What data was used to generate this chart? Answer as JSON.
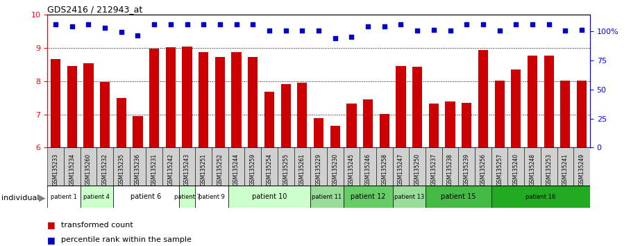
{
  "title": "GDS2416 / 212943_at",
  "samples": [
    "GSM135233",
    "GSM135234",
    "GSM135260",
    "GSM135232",
    "GSM135235",
    "GSM135236",
    "GSM135231",
    "GSM135242",
    "GSM135243",
    "GSM135251",
    "GSM135252",
    "GSM135244",
    "GSM135259",
    "GSM135254",
    "GSM135255",
    "GSM135261",
    "GSM135229",
    "GSM135230",
    "GSM135245",
    "GSM135246",
    "GSM135258",
    "GSM135247",
    "GSM135250",
    "GSM135237",
    "GSM135238",
    "GSM135239",
    "GSM135256",
    "GSM135257",
    "GSM135240",
    "GSM135248",
    "GSM135253",
    "GSM135241",
    "GSM135249"
  ],
  "bar_values": [
    8.67,
    8.45,
    8.55,
    7.98,
    7.5,
    6.95,
    8.97,
    9.03,
    9.05,
    8.88,
    8.72,
    8.88,
    8.72,
    7.68,
    7.92,
    7.95,
    6.88,
    6.65,
    7.32,
    7.45,
    7.02,
    8.45,
    8.43,
    7.32,
    7.38,
    7.35,
    8.93,
    8.02,
    8.35,
    8.78,
    8.77,
    8.02,
    8.02
  ],
  "dot_values": [
    9.72,
    9.65,
    9.72,
    9.6,
    9.48,
    9.38,
    9.72,
    9.72,
    9.72,
    9.72,
    9.72,
    9.72,
    9.72,
    9.52,
    9.52,
    9.52,
    9.52,
    9.3,
    9.33,
    9.65,
    9.65,
    9.72,
    9.52,
    9.55,
    9.52,
    9.72,
    9.72,
    9.52,
    9.72,
    9.72,
    9.72,
    9.52,
    9.55
  ],
  "ylim": [
    6,
    10
  ],
  "yticks": [
    6,
    7,
    8,
    9,
    10
  ],
  "right_ytick_labels": [
    "0",
    "25",
    "50",
    "75",
    "100%"
  ],
  "right_ytick_positions": [
    6.0,
    6.875,
    7.75,
    8.625,
    9.5
  ],
  "bar_color": "#cc0000",
  "dot_color": "#0000cc",
  "patients": [
    {
      "label": "patient 1",
      "start": 0,
      "end": 2,
      "color": "#ffffff",
      "small_font": false
    },
    {
      "label": "patient 4",
      "start": 2,
      "end": 4,
      "color": "#ccffcc",
      "small_font": false
    },
    {
      "label": "patient 6",
      "start": 4,
      "end": 8,
      "color": "#ffffff",
      "small_font": false
    },
    {
      "label": "patient 7",
      "start": 8,
      "end": 9,
      "color": "#ccffcc",
      "small_font": false
    },
    {
      "label": "patient 9",
      "start": 9,
      "end": 11,
      "color": "#ffffff",
      "small_font": false
    },
    {
      "label": "patient 10",
      "start": 11,
      "end": 16,
      "color": "#ccffcc",
      "small_font": false
    },
    {
      "label": "patient 11",
      "start": 16,
      "end": 18,
      "color": "#99dd99",
      "small_font": true
    },
    {
      "label": "patient 12",
      "start": 18,
      "end": 21,
      "color": "#66cc66",
      "small_font": false
    },
    {
      "label": "patient 13",
      "start": 21,
      "end": 23,
      "color": "#99dd99",
      "small_font": true
    },
    {
      "label": "patient 15",
      "start": 23,
      "end": 27,
      "color": "#44bb44",
      "small_font": false
    },
    {
      "label": "patient 16",
      "start": 27,
      "end": 33,
      "color": "#22aa22",
      "small_font": true
    }
  ],
  "legend_bar_label": "transformed count",
  "legend_dot_label": "percentile rank within the sample",
  "individual_label": "individual"
}
